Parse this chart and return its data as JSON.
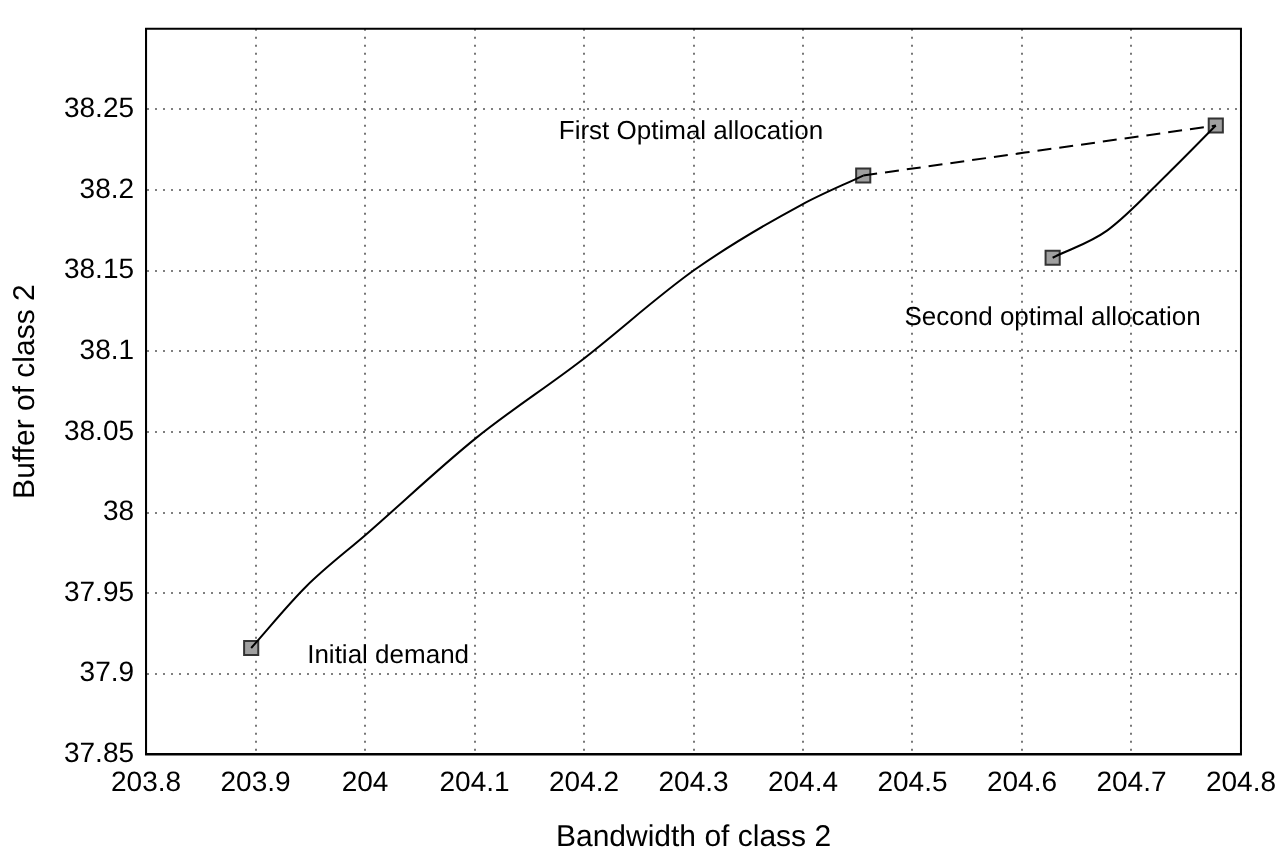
{
  "chart_data": {
    "type": "line",
    "xlabel": "Bandwidth of class 2",
    "ylabel": "Buffer of class 2",
    "xlim": [
      203.8,
      204.8
    ],
    "xticks": [
      203.8,
      203.9,
      204,
      204.1,
      204.2,
      204.3,
      204.4,
      204.5,
      204.6,
      204.7,
      204.8
    ],
    "ylim": [
      37.85,
      38.3
    ],
    "yticks": [
      37.85,
      37.9,
      37.95,
      38,
      38.05,
      38.1,
      38.15,
      38.2,
      38.25
    ],
    "grid": true,
    "legend": false,
    "series": [
      {
        "color": "#000000",
        "line_style": "solid",
        "marker": "none",
        "x": [
          203.896,
          203.946,
          204.002,
          204.101,
          204.197,
          204.302,
          204.399,
          204.455
        ],
        "values": [
          37.916,
          37.954,
          37.987,
          38.046,
          38.094,
          38.151,
          38.191,
          38.209
        ]
      },
      {
        "color": "#000000",
        "line_style": "dashed",
        "marker": "none",
        "x": [
          204.455,
          204.777
        ],
        "values": [
          38.209,
          38.24
        ]
      },
      {
        "color": "#000000",
        "line_style": "solid",
        "marker": "none",
        "x": [
          204.628,
          204.678,
          204.733,
          204.777
        ],
        "values": [
          38.158,
          38.175,
          38.21,
          38.24
        ]
      },
      {
        "type": "scatter",
        "color": "#a0a0a0",
        "marker": "square",
        "x": [
          203.896,
          204.455,
          204.777,
          204.628
        ],
        "values": [
          37.916,
          38.209,
          38.24,
          38.158
        ]
      }
    ],
    "annotations": [
      {
        "text": "First Optimal allocation",
        "x": 204.455,
        "y": 38.209
      },
      {
        "text": "Second optimal allocation",
        "x": 204.628,
        "y": 38.158
      },
      {
        "text": "Initial demand",
        "x": 203.896,
        "y": 37.916
      }
    ]
  }
}
